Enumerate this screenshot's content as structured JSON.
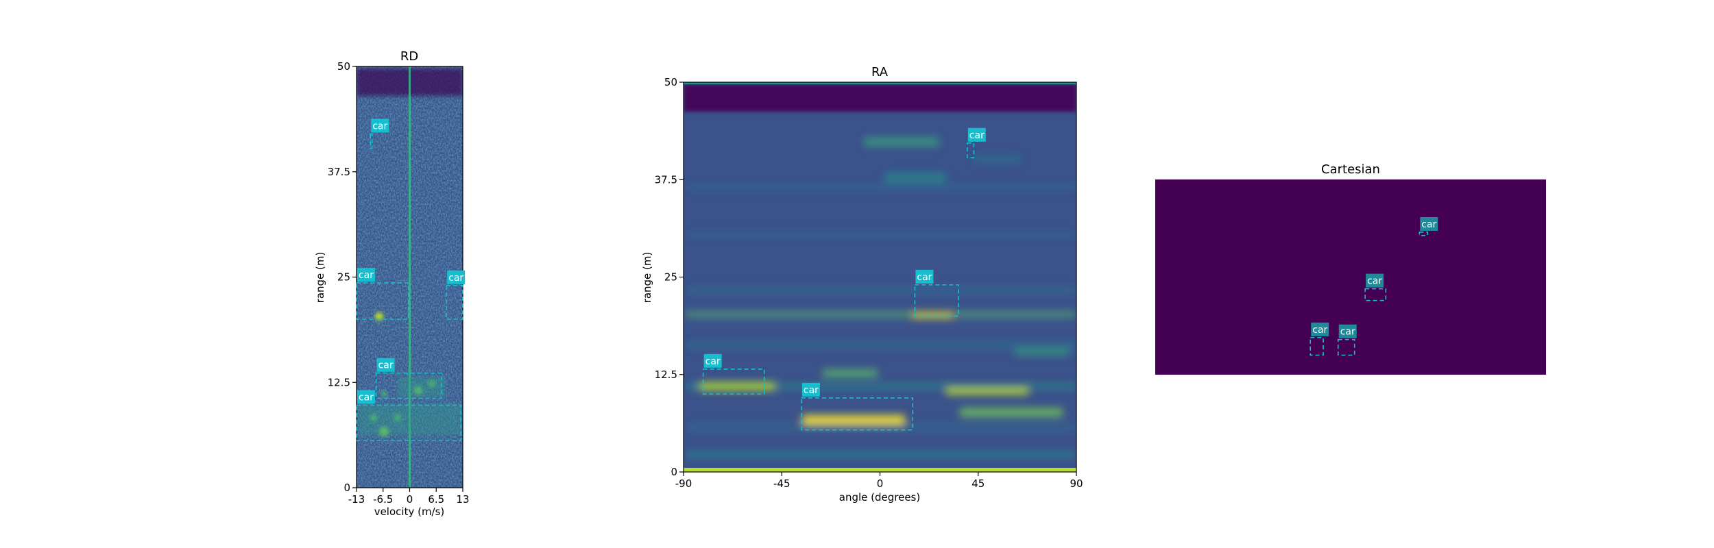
{
  "colors": {
    "box": "#17becf",
    "label_bg": "#17becf",
    "label_bg_cartesian": "#1f8a9a",
    "viridis_dark": "#440154",
    "viridis_blue": "#3b528b",
    "viridis_teal": "#21918c",
    "viridis_green": "#5ec962",
    "viridis_yellow": "#fde725"
  },
  "chart_data": [
    {
      "id": "rd",
      "type": "heatmap",
      "title": "RD",
      "xlabel": "velocity (m/s)",
      "ylabel": "range (m)",
      "xlim": [
        -13,
        13
      ],
      "ylim": [
        0,
        50
      ],
      "xticks": [
        {
          "value": -13,
          "label": "-13"
        },
        {
          "value": -6.5,
          "label": "-6.5"
        },
        {
          "value": 0,
          "label": "0"
        },
        {
          "value": 6.5,
          "label": "6.5"
        },
        {
          "value": 13,
          "label": "13"
        }
      ],
      "yticks": [
        {
          "value": 0,
          "label": "0"
        },
        {
          "value": 12.5,
          "label": "12.5"
        },
        {
          "value": 25,
          "label": "25"
        },
        {
          "value": 37.5,
          "label": "37.5"
        },
        {
          "value": 50,
          "label": "50"
        }
      ],
      "detections": [
        {
          "label": "car",
          "x0": -9.6,
          "x1": -9.2,
          "y0": 40.3,
          "y1": 42.0
        },
        {
          "label": "car",
          "x0": -13.0,
          "x1": -0.3,
          "y0": 20.0,
          "y1": 24.3
        },
        {
          "label": "car",
          "x0": 9.0,
          "x1": 13.0,
          "y0": 20.0,
          "y1": 24.0
        },
        {
          "label": "car",
          "x0": -8.2,
          "x1": 7.8,
          "y0": 10.6,
          "y1": 13.6
        },
        {
          "label": "car",
          "x0": -13.0,
          "x1": 12.5,
          "y0": 5.6,
          "y1": 9.8
        }
      ]
    },
    {
      "id": "ra",
      "type": "heatmap",
      "title": "RA",
      "xlabel": "angle (degrees)",
      "ylabel": "range (m)",
      "xlim": [
        -90,
        90
      ],
      "ylim": [
        0,
        50
      ],
      "xticks": [
        {
          "value": -90,
          "label": "-90"
        },
        {
          "value": -45,
          "label": "-45"
        },
        {
          "value": 0,
          "label": "0"
        },
        {
          "value": 45,
          "label": "45"
        },
        {
          "value": 90,
          "label": "90"
        }
      ],
      "yticks": [
        {
          "value": 0,
          "label": "0"
        },
        {
          "value": 12.5,
          "label": "12.5"
        },
        {
          "value": 25,
          "label": "25"
        },
        {
          "value": 37.5,
          "label": "37.5"
        },
        {
          "value": 50,
          "label": "50"
        }
      ],
      "detections": [
        {
          "label": "car",
          "x0": 40,
          "x1": 43,
          "y0": 40.3,
          "y1": 42.2
        },
        {
          "label": "car",
          "x0": 16,
          "x1": 36,
          "y0": 20.0,
          "y1": 24.0
        },
        {
          "label": "car",
          "x0": -81,
          "x1": -53,
          "y0": 10.0,
          "y1": 13.2
        },
        {
          "label": "car",
          "x0": -36,
          "x1": 15,
          "y0": 5.4,
          "y1": 9.5
        }
      ]
    },
    {
      "id": "cartesian",
      "type": "heatmap",
      "title": "Cartesian",
      "detections": [
        {
          "label": "car",
          "x0": 0.676,
          "x1": 0.697,
          "y0": 0.27,
          "y1": 0.287
        },
        {
          "label": "car",
          "x0": 0.537,
          "x1": 0.59,
          "y0": 0.56,
          "y1": 0.62
        },
        {
          "label": "car",
          "x0": 0.397,
          "x1": 0.43,
          "y0": 0.81,
          "y1": 0.9
        },
        {
          "label": "car",
          "x0": 0.468,
          "x1": 0.51,
          "y0": 0.82,
          "y1": 0.9
        }
      ]
    }
  ]
}
